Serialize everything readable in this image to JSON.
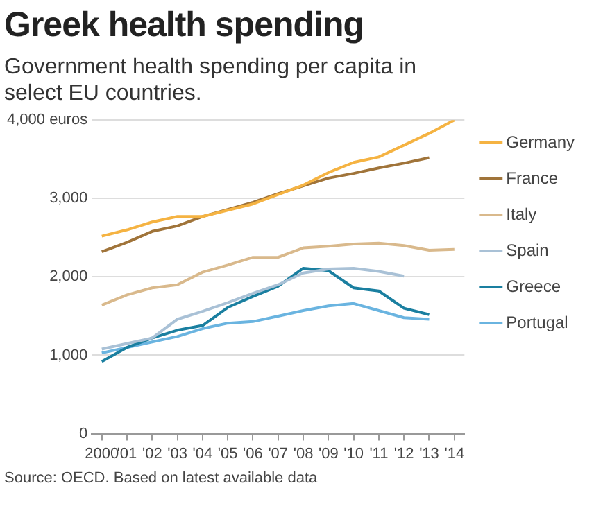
{
  "chart_data": {
    "type": "line",
    "title": "Greek health spending",
    "subtitle": "Government health spending per capita in select EU countries.",
    "x": [
      2000,
      2001,
      2002,
      2003,
      2004,
      2005,
      2006,
      2007,
      2008,
      2009,
      2010,
      2011,
      2012,
      2013,
      2014
    ],
    "series": [
      {
        "name": "Germany",
        "color": "#f5b342",
        "values": [
          2520,
          2600,
          2700,
          2770,
          2770,
          2850,
          2930,
          3050,
          3170,
          3330,
          3460,
          3530,
          3680,
          3830,
          4000
        ]
      },
      {
        "name": "France",
        "color": "#a0743a",
        "values": [
          2320,
          2440,
          2580,
          2650,
          2770,
          2860,
          2950,
          3060,
          3160,
          3260,
          3320,
          3390,
          3450,
          3520,
          null
        ]
      },
      {
        "name": "Italy",
        "color": "#d9b98c",
        "values": [
          1640,
          1770,
          1860,
          1900,
          2060,
          2150,
          2250,
          2250,
          2370,
          2390,
          2420,
          2430,
          2400,
          2340,
          2350
        ]
      },
      {
        "name": "Spain",
        "color": "#a9c1d6",
        "values": [
          1080,
          1150,
          1220,
          1460,
          1560,
          1670,
          1790,
          1900,
          2050,
          2100,
          2110,
          2070,
          2010,
          null,
          null
        ]
      },
      {
        "name": "Greece",
        "color": "#1a7fa0",
        "values": [
          920,
          1100,
          1220,
          1320,
          1380,
          1610,
          1750,
          1880,
          2110,
          2080,
          1860,
          1820,
          1600,
          1520,
          null
        ]
      },
      {
        "name": "Portugal",
        "color": "#6ab4e0",
        "values": [
          1030,
          1100,
          1170,
          1240,
          1340,
          1410,
          1430,
          1500,
          1570,
          1630,
          1660,
          1570,
          1480,
          1460,
          null
        ]
      }
    ],
    "xlim": [
      1999.6,
      2014.4
    ],
    "xticks": [
      {
        "value": 2000,
        "label": "2000"
      },
      {
        "value": 2001,
        "label": "'01"
      },
      {
        "value": 2002,
        "label": "'02"
      },
      {
        "value": 2003,
        "label": "'03"
      },
      {
        "value": 2004,
        "label": "'04"
      },
      {
        "value": 2005,
        "label": "'05"
      },
      {
        "value": 2006,
        "label": "'06"
      },
      {
        "value": 2007,
        "label": "'07"
      },
      {
        "value": 2008,
        "label": "'08"
      },
      {
        "value": 2009,
        "label": "'09"
      },
      {
        "value": 2010,
        "label": "'10"
      },
      {
        "value": 2011,
        "label": "'11"
      },
      {
        "value": 2012,
        "label": "'12"
      },
      {
        "value": 2013,
        "label": "'13"
      },
      {
        "value": 2014,
        "label": "'14"
      }
    ],
    "ylim": [
      0,
      4000
    ],
    "yticks": [
      0,
      {
        "value": 1000,
        "label": "1,000"
      },
      {
        "value": 2000,
        "label": "2,000"
      },
      {
        "value": 3000,
        "label": "3,000"
      },
      {
        "value": 4000,
        "label": "4,000 euros"
      }
    ],
    "grid": "y",
    "legend": "right",
    "marker": "none",
    "line_style": "solid",
    "annotations": [
      "Source: OECD. Based on latest available data"
    ]
  }
}
